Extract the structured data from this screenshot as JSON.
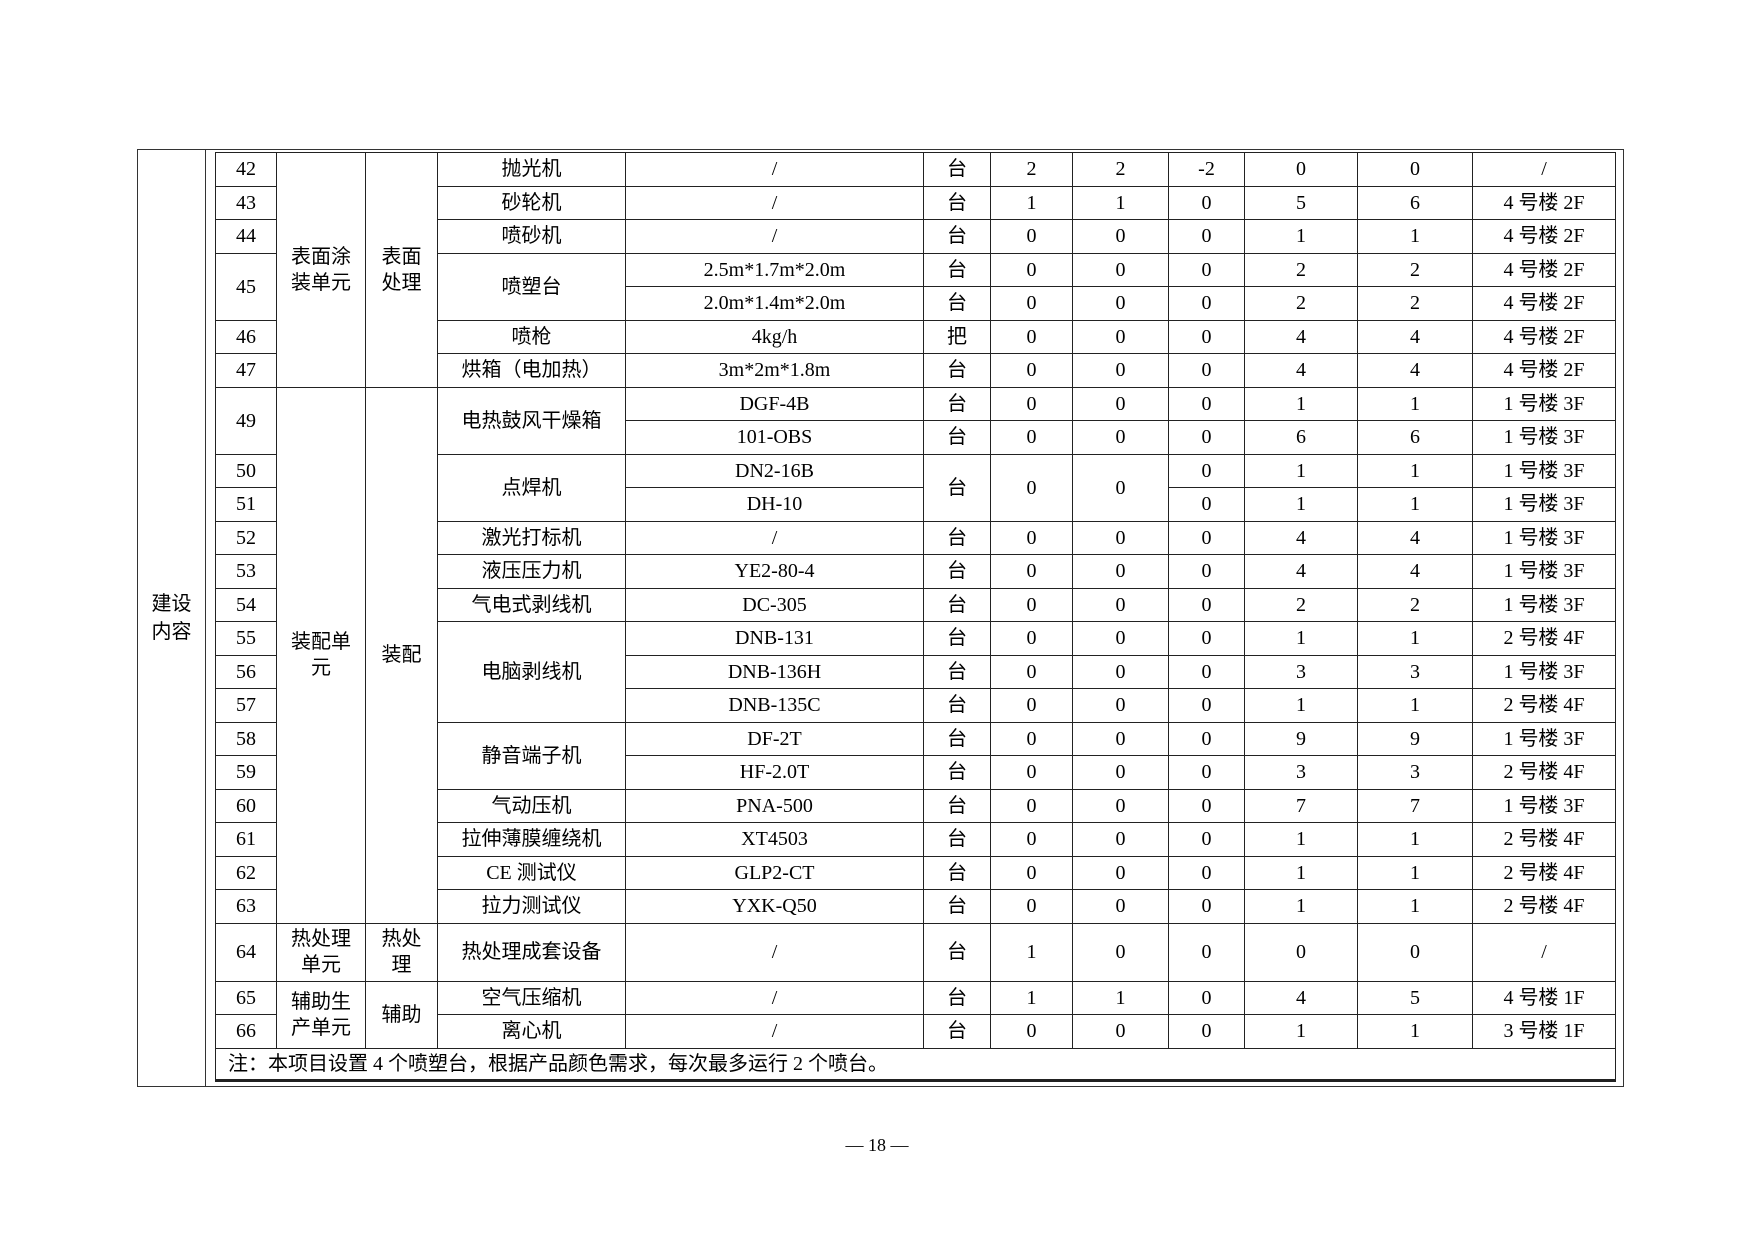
{
  "side_label": "建设内容",
  "groups": [
    {
      "unit": "表面涂装单元",
      "section": "表面处理",
      "items": [
        {
          "name": "抛光机",
          "rows": [
            {
              "no": "42",
              "model": "/",
              "measure": "台",
              "q": [
                "2",
                "2",
                "-2",
                "0",
                "0"
              ],
              "location": "/"
            }
          ]
        },
        {
          "name": "砂轮机",
          "rows": [
            {
              "no": "43",
              "model": "/",
              "measure": "台",
              "q": [
                "1",
                "1",
                "0",
                "5",
                "6"
              ],
              "location": "4 号楼 2F"
            }
          ]
        },
        {
          "name": "喷砂机",
          "rows": [
            {
              "no": "44",
              "model": "/",
              "measure": "台",
              "q": [
                "0",
                "0",
                "0",
                "1",
                "1"
              ],
              "location": "4 号楼 2F"
            }
          ]
        },
        {
          "name": "喷塑台",
          "rows": [
            {
              "no": "45",
              "model": "2.5m*1.7m*2.0m",
              "measure": "台",
              "q": [
                "0",
                "0",
                "0",
                "2",
                "2"
              ],
              "location": "4 号楼 2F"
            },
            {
              "no": null,
              "model": "2.0m*1.4m*2.0m",
              "measure": "台",
              "q": [
                "0",
                "0",
                "0",
                "2",
                "2"
              ],
              "location": "4 号楼 2F"
            }
          ]
        },
        {
          "name": "喷枪",
          "rows": [
            {
              "no": "46",
              "model": "4kg/h",
              "measure": "把",
              "q": [
                "0",
                "0",
                "0",
                "4",
                "4"
              ],
              "location": "4 号楼 2F"
            }
          ]
        },
        {
          "name": "烘箱（电加热）",
          "rows": [
            {
              "no": "47",
              "model": "3m*2m*1.8m",
              "measure": "台",
              "q": [
                "0",
                "0",
                "0",
                "4",
                "4"
              ],
              "location": "4 号楼 2F"
            }
          ]
        }
      ]
    },
    {
      "unit": "装配单元",
      "section": "装配",
      "items": [
        {
          "name": "电热鼓风干燥箱",
          "rows": [
            {
              "no": "49",
              "model": "DGF-4B",
              "measure": "台",
              "q": [
                "0",
                "0",
                "0",
                "1",
                "1"
              ],
              "location": "1 号楼 3F"
            },
            {
              "no": null,
              "model": "101-OBS",
              "measure": "台",
              "q": [
                "0",
                "0",
                "0",
                "6",
                "6"
              ],
              "location": "1 号楼 3F"
            }
          ]
        },
        {
          "name": "点焊机",
          "rows": [
            {
              "no": "50",
              "model": "DN2-16B",
              "measure": "台",
              "q": [
                "0",
                "0",
                "0",
                "1",
                "1"
              ],
              "location": "1 号楼 3F"
            },
            {
              "no": "51",
              "model": "DH-10",
              "measure": null,
              "q": [
                null,
                null,
                "0",
                "1",
                "1"
              ],
              "location": "1 号楼 3F"
            }
          ]
        },
        {
          "name": "激光打标机",
          "rows": [
            {
              "no": "52",
              "model": "/",
              "measure": "台",
              "q": [
                "0",
                "0",
                "0",
                "4",
                "4"
              ],
              "location": "1 号楼 3F"
            }
          ]
        },
        {
          "name": "液压压力机",
          "rows": [
            {
              "no": "53",
              "model": "YE2-80-4",
              "measure": "台",
              "q": [
                "0",
                "0",
                "0",
                "4",
                "4"
              ],
              "location": "1 号楼 3F"
            }
          ]
        },
        {
          "name": "气电式剥线机",
          "rows": [
            {
              "no": "54",
              "model": "DC-305",
              "measure": "台",
              "q": [
                "0",
                "0",
                "0",
                "2",
                "2"
              ],
              "location": "1 号楼 3F"
            }
          ]
        },
        {
          "name": "电脑剥线机",
          "rows": [
            {
              "no": "55",
              "model": "DNB-131",
              "measure": "台",
              "q": [
                "0",
                "0",
                "0",
                "1",
                "1"
              ],
              "location": "2 号楼 4F"
            },
            {
              "no": "56",
              "model": "DNB-136H",
              "measure": "台",
              "q": [
                "0",
                "0",
                "0",
                "3",
                "3"
              ],
              "location": "1 号楼 3F"
            },
            {
              "no": "57",
              "model": "DNB-135C",
              "measure": "台",
              "q": [
                "0",
                "0",
                "0",
                "1",
                "1"
              ],
              "location": "2 号楼 4F"
            }
          ]
        },
        {
          "name": "静音端子机",
          "rows": [
            {
              "no": "58",
              "model": "DF-2T",
              "measure": "台",
              "q": [
                "0",
                "0",
                "0",
                "9",
                "9"
              ],
              "location": "1 号楼 3F"
            },
            {
              "no": "59",
              "model": "HF-2.0T",
              "measure": "台",
              "q": [
                "0",
                "0",
                "0",
                "3",
                "3"
              ],
              "location": "2 号楼 4F"
            }
          ]
        },
        {
          "name": "气动压机",
          "rows": [
            {
              "no": "60",
              "model": "PNA-500",
              "measure": "台",
              "q": [
                "0",
                "0",
                "0",
                "7",
                "7"
              ],
              "location": "1 号楼 3F"
            }
          ]
        },
        {
          "name": "拉伸薄膜缠绕机",
          "rows": [
            {
              "no": "61",
              "model": "XT4503",
              "measure": "台",
              "q": [
                "0",
                "0",
                "0",
                "1",
                "1"
              ],
              "location": "2 号楼 4F"
            }
          ]
        },
        {
          "name": "CE 测试仪",
          "rows": [
            {
              "no": "62",
              "model": "GLP2-CT",
              "measure": "台",
              "q": [
                "0",
                "0",
                "0",
                "1",
                "1"
              ],
              "location": "2 号楼 4F"
            }
          ]
        },
        {
          "name": "拉力测试仪",
          "rows": [
            {
              "no": "63",
              "model": "YXK-Q50",
              "measure": "台",
              "q": [
                "0",
                "0",
                "0",
                "1",
                "1"
              ],
              "location": "2 号楼 4F"
            }
          ]
        }
      ]
    },
    {
      "unit": "热处理单元",
      "section": "热处理",
      "tall": true,
      "items": [
        {
          "name": "热处理成套设备",
          "rows": [
            {
              "no": "64",
              "model": "/",
              "measure": "台",
              "q": [
                "1",
                "0",
                "0",
                "0",
                "0"
              ],
              "location": "/"
            }
          ]
        }
      ]
    },
    {
      "unit": "辅助生产单元",
      "section": "辅助",
      "items": [
        {
          "name": "空气压缩机",
          "rows": [
            {
              "no": "65",
              "model": "/",
              "measure": "台",
              "q": [
                "1",
                "1",
                "0",
                "4",
                "5"
              ],
              "location": "4 号楼 1F"
            }
          ]
        },
        {
          "name": "离心机",
          "rows": [
            {
              "no": "66",
              "model": "/",
              "measure": "台",
              "q": [
                "0",
                "0",
                "0",
                "1",
                "1"
              ],
              "location": "3 号楼 1F"
            }
          ]
        }
      ]
    }
  ],
  "note": "注：本项目设置 4 个喷塑台，根据产品颜色需求，每次最多运行 2 个喷台。",
  "page_number": "— 18 —"
}
